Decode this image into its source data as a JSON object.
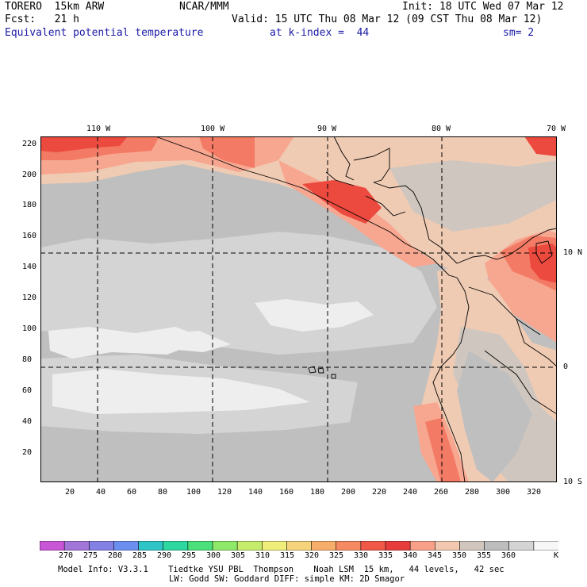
{
  "header": {
    "model": "TORERO  15km ARW",
    "center": "NCAR/MMM",
    "init": "Init: 18 UTC Wed 07 Mar 12",
    "fcst": "Fcst:   21 h",
    "valid": "Valid: 15 UTC Thu 08 Mar 12 (09 CST Thu 08 Mar 12)",
    "field": "Equivalent potential temperature",
    "level": "at k-index =  44",
    "smooth": "sm= 2"
  },
  "top_longitudes": [
    "110 W",
    "100 W",
    "90 W",
    "80 W",
    "70 W"
  ],
  "right_latitudes": [
    "10 N",
    "0",
    "10 S"
  ],
  "y_ticks": [
    "220",
    "200",
    "180",
    "160",
    "140",
    "120",
    "100",
    "80",
    "60",
    "40",
    "20"
  ],
  "x_ticks": [
    "20",
    "40",
    "60",
    "80",
    "100",
    "120",
    "140",
    "160",
    "180",
    "200",
    "220",
    "240",
    "260",
    "280",
    "300",
    "320"
  ],
  "colorbar": {
    "labels": [
      "270",
      "275",
      "280",
      "285",
      "290",
      "295",
      "300",
      "305",
      "310",
      "315",
      "320",
      "325",
      "330",
      "335",
      "340",
      "345",
      "350",
      "355",
      "360"
    ],
    "unit": "K",
    "colors": [
      "#c956d6",
      "#a275d8",
      "#8580e6",
      "#6b8ff0",
      "#2fc4c6",
      "#2ed6a0",
      "#4be07a",
      "#8ee86a",
      "#c6ec6c",
      "#f0ee7a",
      "#f6d47c",
      "#f6ae6a",
      "#f58a62",
      "#f05848",
      "#e73c3c",
      "#f9a088",
      "#f2c8b0",
      "#d0c6bd",
      "#bdbdbd",
      "#d4d4d4",
      "#f7f7f7"
    ]
  },
  "footer": {
    "line1": "Model Info: V3.3.1    Tiedtke YSU PBL  Thompson    Noah LSM  15 km,   44 levels,   42 sec",
    "line2": "LW: Godd SW: Goddard DIFF: simple KM: 2D Smagor"
  },
  "map_colors": {
    "c330": "#ec4a3f",
    "c335": "#f37a64",
    "c340": "#f7a690",
    "c345": "#f0cbb3",
    "c350": "#cfc7bf",
    "c355": "#bfbfbf",
    "c360": "#d4d4d4",
    "c365": "#eeeeee"
  }
}
